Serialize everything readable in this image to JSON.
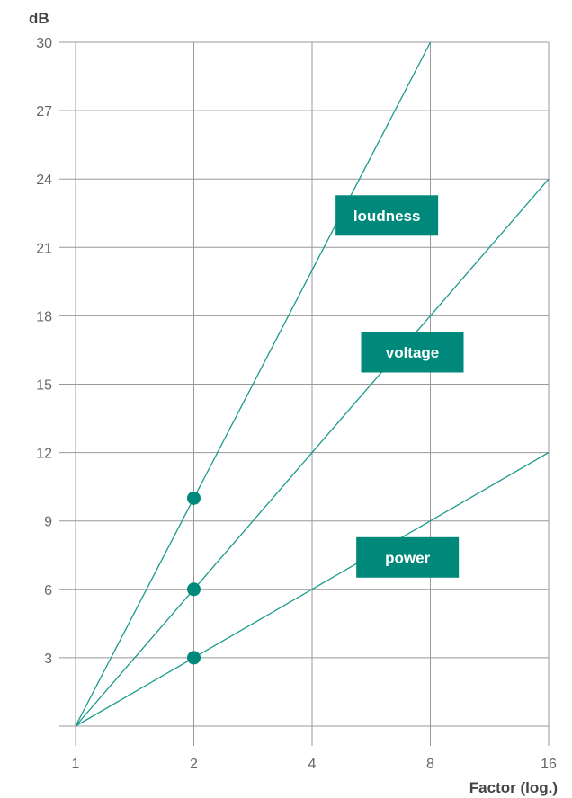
{
  "chart_data": {
    "type": "line",
    "ylabel": "dB",
    "xlabel": "Factor (log.)",
    "x_scale": "log2",
    "xlim": [
      1,
      16
    ],
    "ylim": [
      0,
      30
    ],
    "x_ticks": [
      "1",
      "2",
      "4",
      "8",
      "16"
    ],
    "x_tick_values": [
      1,
      2,
      4,
      8,
      16
    ],
    "y_ticks": [
      "3",
      "6",
      "9",
      "12",
      "15",
      "18",
      "21",
      "24",
      "27",
      "30"
    ],
    "y_tick_values": [
      3,
      6,
      9,
      12,
      15,
      18,
      21,
      24,
      27,
      30
    ],
    "grid": true,
    "series": [
      {
        "name": "loudness",
        "x": [
          1,
          8
        ],
        "y": [
          0,
          30
        ]
      },
      {
        "name": "voltage",
        "x": [
          1,
          16
        ],
        "y": [
          0,
          24
        ]
      },
      {
        "name": "power",
        "x": [
          1,
          16
        ],
        "y": [
          0,
          12
        ]
      }
    ],
    "label_anchors": [
      {
        "x": 6.2,
        "y": 22.4
      },
      {
        "x": 7.2,
        "y": 16.4
      },
      {
        "x": 7.0,
        "y": 7.4
      }
    ],
    "markers": [
      {
        "x": 2,
        "y": 10
      },
      {
        "x": 2,
        "y": 6
      },
      {
        "x": 2,
        "y": 3
      }
    ]
  },
  "colors": {
    "series": "#1a9a8c",
    "label_bg": "#00897b",
    "grid": "#999999",
    "tick": "#666666",
    "axis_title": "#444444"
  }
}
